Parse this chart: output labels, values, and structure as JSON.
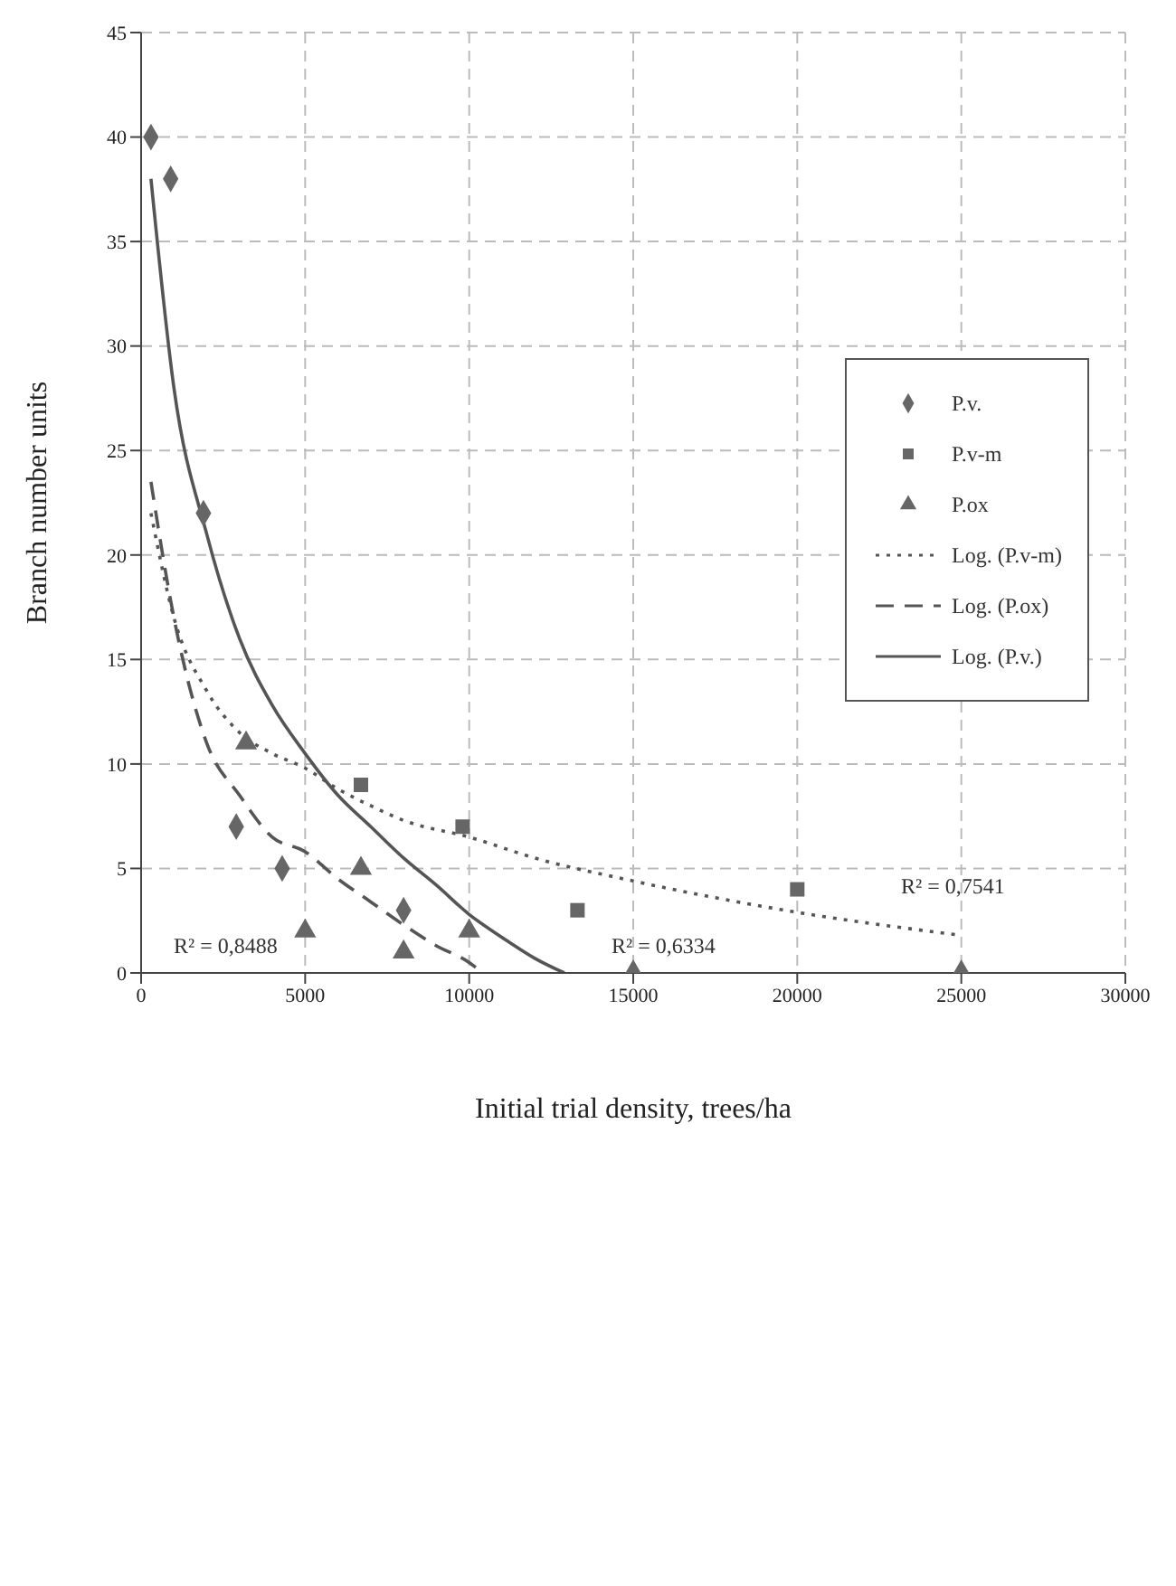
{
  "chart_data": {
    "type": "scatter",
    "xlabel": "Initial trial density, trees/ha",
    "ylabel": "Branch number  units",
    "xlim": [
      0,
      30000
    ],
    "xticks": [
      0,
      5000,
      10000,
      15000,
      20000,
      25000,
      30000
    ],
    "ylim": [
      0,
      45
    ],
    "yticks": [
      0,
      5,
      10,
      15,
      20,
      25,
      30,
      35,
      40,
      45
    ],
    "grid": true,
    "legend": "right",
    "series": [
      {
        "name": "P.v.",
        "marker": "diamond",
        "color": "#666666",
        "x": [
          300,
          900,
          1900,
          2900,
          4300,
          8000,
          15000,
          25000
        ],
        "values": [
          40,
          38,
          22,
          7,
          5,
          3,
          0,
          0
        ]
      },
      {
        "name": "P.v-m",
        "marker": "square",
        "color": "#666666",
        "x": [
          6700,
          9800,
          13300,
          20000
        ],
        "values": [
          9,
          7,
          3,
          4
        ]
      },
      {
        "name": "P.ox",
        "marker": "triangle",
        "color": "#666666",
        "x": [
          3200,
          5000,
          6700,
          8000,
          10000
        ],
        "values": [
          11,
          2,
          5,
          1,
          2
        ]
      },
      {
        "name": "Log. (P.v-m)",
        "type": "line",
        "line_style": "dotted",
        "color": "#555555",
        "x": [
          300,
          1000,
          2000,
          3000,
          4000,
          5000,
          6000,
          7000,
          8000,
          10000,
          12000,
          15000,
          20000,
          25000
        ],
        "values": [
          22,
          17,
          13.5,
          11.5,
          10.5,
          9.8,
          8.8,
          8,
          7.3,
          6.5,
          5.5,
          4.4,
          2.9,
          1.8
        ]
      },
      {
        "name": "Log. (P.ox)",
        "type": "line",
        "line_style": "dashed",
        "color": "#555555",
        "x": [
          300,
          1000,
          2000,
          3000,
          4000,
          5000,
          6000,
          7000,
          8000,
          9000,
          10000,
          10400
        ],
        "values": [
          23.5,
          17,
          11,
          8.5,
          6.5,
          5.8,
          4.5,
          3.4,
          2.3,
          1.3,
          0.5,
          0
        ]
      },
      {
        "name": "Log. (P.v.)",
        "type": "line",
        "line_style": "solid",
        "color": "#555555",
        "x": [
          300,
          1000,
          2000,
          3000,
          4000,
          5000,
          6000,
          7000,
          8000,
          9000,
          10000,
          11000,
          12000,
          12900
        ],
        "values": [
          38,
          28,
          21,
          16,
          12.8,
          10.5,
          8.5,
          7,
          5.5,
          4.2,
          2.8,
          1.7,
          0.7,
          0
        ]
      }
    ],
    "annotations": [
      "R² = 0,8488",
      "R² = 0,6334",
      "R² = 0,7541"
    ]
  }
}
